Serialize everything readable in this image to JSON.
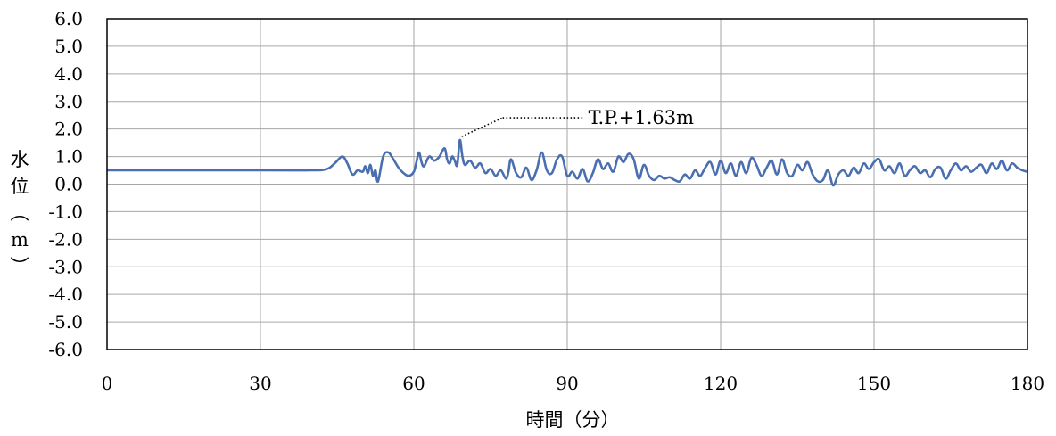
{
  "chart_data": {
    "type": "line",
    "title": "",
    "xlabel": "時間（分）",
    "ylabel": "水位（m）",
    "xlim": [
      0,
      180
    ],
    "ylim": [
      -6.0,
      6.0
    ],
    "x_ticks": [
      0,
      30,
      60,
      90,
      120,
      150,
      180
    ],
    "x_tick_labels": [
      "0",
      "30",
      "60",
      "90",
      "120",
      "150",
      "180"
    ],
    "y_ticks": [
      6.0,
      5.0,
      4.0,
      3.0,
      2.0,
      1.0,
      0.0,
      -1.0,
      -2.0,
      -3.0,
      -4.0,
      -5.0,
      -6.0
    ],
    "y_tick_labels": [
      "6.0",
      "5.0",
      "4.0",
      "3.0",
      "2.0",
      "1.0",
      "0.0",
      "-1.0",
      "-2.0",
      "-3.0",
      "-4.0",
      "-5.0",
      "-6.0"
    ],
    "grid": true,
    "line_color": "#4a6fb0",
    "annotation": {
      "text": "T.P.+1.63m",
      "x": 69,
      "y": 1.63
    },
    "series": [
      {
        "x": [
          0,
          30,
          40,
          43,
          44.5,
          46,
          47,
          48,
          49,
          50,
          50.5,
          51,
          51.5,
          52,
          52.5,
          53,
          54,
          55,
          56,
          57,
          58,
          59,
          60,
          60.5,
          61,
          61.5,
          62,
          63,
          64,
          65,
          66,
          66.5,
          67,
          67.5,
          68,
          68.5,
          69,
          69.5,
          70,
          71,
          72,
          73,
          74,
          75,
          76,
          77,
          78,
          78.5,
          79,
          80,
          81,
          82,
          83,
          84,
          85,
          86,
          87,
          88,
          89,
          90,
          91,
          92,
          93,
          94,
          95,
          96,
          97,
          98,
          99,
          100,
          101,
          102,
          103,
          104,
          105,
          106,
          107,
          108,
          109,
          110,
          111,
          112,
          113,
          114,
          115,
          116,
          117,
          118,
          119,
          120,
          121,
          122,
          123,
          124,
          125,
          126,
          127,
          128,
          129,
          130,
          131,
          132,
          133,
          134,
          135,
          136,
          137,
          138,
          139,
          140,
          141,
          142,
          143,
          144,
          145,
          146,
          147,
          148,
          149,
          150,
          151,
          152,
          153,
          154,
          155,
          156,
          157,
          158,
          159,
          160,
          161,
          162,
          163,
          164,
          165,
          166,
          167,
          168,
          169,
          170,
          171,
          172,
          173,
          174,
          175,
          176,
          177,
          178,
          179,
          180
        ],
        "values": [
          0.5,
          0.5,
          0.5,
          0.55,
          0.75,
          1.0,
          0.75,
          0.35,
          0.5,
          0.45,
          0.65,
          0.4,
          0.7,
          0.3,
          0.5,
          0.1,
          1.0,
          1.15,
          0.9,
          0.6,
          0.4,
          0.3,
          0.45,
          0.8,
          1.15,
          0.8,
          0.65,
          1.0,
          0.85,
          1.0,
          1.3,
          0.9,
          0.75,
          1.0,
          0.85,
          0.7,
          1.6,
          1.0,
          0.7,
          0.85,
          0.6,
          0.75,
          0.4,
          0.55,
          0.3,
          0.5,
          0.2,
          0.45,
          0.9,
          0.4,
          0.25,
          0.6,
          0.15,
          0.5,
          1.15,
          0.5,
          0.4,
          0.9,
          1.0,
          0.3,
          0.45,
          0.2,
          0.55,
          0.1,
          0.4,
          0.9,
          0.55,
          0.75,
          0.45,
          1.0,
          0.8,
          1.1,
          0.9,
          0.2,
          0.7,
          0.3,
          0.15,
          0.3,
          0.2,
          0.25,
          0.15,
          0.1,
          0.35,
          0.2,
          0.5,
          0.3,
          0.6,
          0.8,
          0.35,
          0.85,
          0.4,
          0.75,
          0.3,
          0.8,
          0.4,
          0.95,
          0.7,
          0.3,
          0.6,
          0.85,
          0.35,
          0.9,
          0.4,
          0.3,
          0.7,
          0.5,
          0.8,
          0.35,
          0.1,
          0.15,
          0.5,
          -0.05,
          0.35,
          0.5,
          0.3,
          0.6,
          0.4,
          0.75,
          0.55,
          0.8,
          0.9,
          0.5,
          0.65,
          0.4,
          0.75,
          0.3,
          0.5,
          0.65,
          0.4,
          0.5,
          0.25,
          0.55,
          0.6,
          0.2,
          0.5,
          0.75,
          0.5,
          0.65,
          0.45,
          0.6,
          0.7,
          0.4,
          0.75,
          0.55,
          0.85,
          0.5,
          0.75,
          0.6,
          0.5,
          0.45
        ]
      }
    ]
  }
}
